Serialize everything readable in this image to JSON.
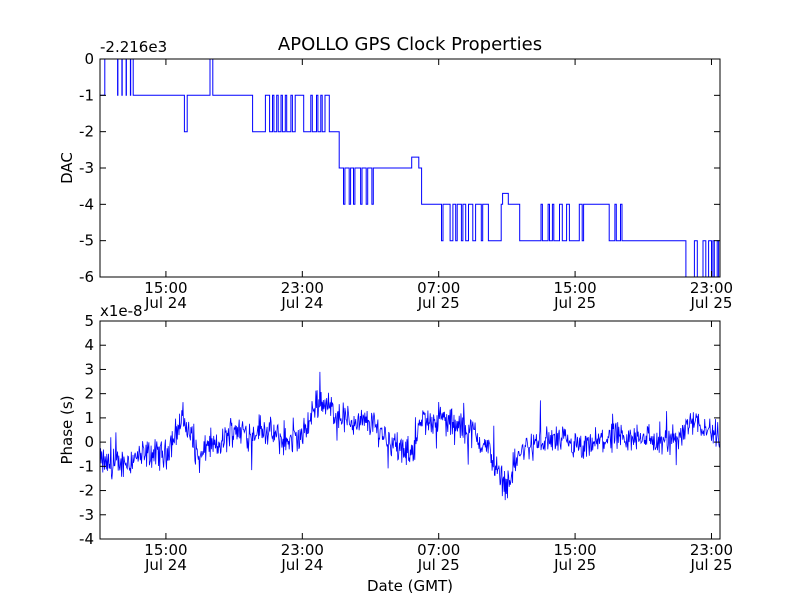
{
  "title": "APOLLO GPS Clock Properties",
  "chart_data": [
    {
      "type": "line",
      "title": "APOLLO GPS Clock Properties",
      "ylabel": "DAC",
      "xlabel": "",
      "offset_label": "-2.216e3",
      "ylim": [
        -6,
        0
      ],
      "yticks": [
        "0",
        "-1",
        "-2",
        "-3",
        "-4",
        "-5",
        "-6"
      ],
      "xlim": [
        "2012-07-24 11:08",
        "2012-07-25 23:30"
      ],
      "xticks": [
        {
          "time": "15:00",
          "date": "Jul 24"
        },
        {
          "time": "23:00",
          "date": "Jul 24"
        },
        {
          "time": "07:00",
          "date": "Jul 25"
        },
        {
          "time": "15:00",
          "date": "Jul 25"
        },
        {
          "time": "23:00",
          "date": "Jul 25"
        }
      ],
      "series_color": "#0000ff",
      "grid": false,
      "series": [
        {
          "x": [
            "11:08",
            "11:20",
            "11:25",
            "11:40",
            "12:10",
            "12:11",
            "12:25",
            "12:26",
            "12:40",
            "12:41",
            "12:55",
            "12:56",
            "13:05",
            "13:06",
            "13:20",
            "13:25",
            "13:40",
            "16:00",
            "16:05",
            "16:10",
            "16:15",
            "16:20",
            "17:25",
            "17:35",
            "17:45",
            "20:00",
            "20:05",
            "20:45",
            "20:50",
            "21:00",
            "21:05",
            "21:15",
            "21:20",
            "21:30",
            "21:35",
            "21:45",
            "21:50",
            "22:00",
            "22:05",
            "22:20",
            "22:25",
            "22:35",
            "22:40",
            "23:00",
            "23:05",
            "23:30",
            "23:35",
            "23:50",
            "23:55",
            "00:05",
            "00:10",
            "00:20",
            "00:25",
            "00:35",
            "00:40",
            "01:10",
            "01:15",
            "01:25",
            "01:30",
            "01:45",
            "01:50",
            "02:00",
            "02:05",
            "02:25",
            "02:30",
            "02:45",
            "02:50",
            "03:05",
            "03:10",
            "03:25",
            "03:30",
            "04:00",
            "04:05",
            "05:20",
            "05:25",
            "05:50",
            "05:55",
            "06:00",
            "06:30",
            "07:00",
            "07:10",
            "07:15",
            "07:40",
            "07:50",
            "08:00",
            "08:05",
            "08:20",
            "08:25",
            "08:35",
            "08:45",
            "09:00",
            "09:10",
            "09:30",
            "09:35",
            "09:50",
            "09:55",
            "10:40",
            "10:45",
            "11:05",
            "11:15",
            "11:40",
            "11:45",
            "13:00",
            "13:05",
            "13:25",
            "13:30",
            "13:40",
            "13:45",
            "14:05",
            "14:15",
            "14:30",
            "14:40",
            "15:10",
            "15:15",
            "15:25",
            "15:30",
            "17:00",
            "17:05",
            "17:20",
            "17:25",
            "17:40",
            "17:45",
            "18:00",
            "18:05",
            "18:10",
            "18:15",
            "21:30",
            "21:40",
            "22:00",
            "22:10",
            "22:30",
            "22:40",
            "22:50",
            "23:00",
            "23:05",
            "23:10",
            "23:20",
            "23:25",
            "23:30"
          ],
          "values": [
            -1,
            -1,
            0,
            0,
            -1,
            0,
            -1,
            0,
            -1,
            0,
            -1,
            0,
            -1,
            -1,
            -1,
            -1,
            -1,
            -1,
            -2,
            -2,
            -1,
            -1,
            -1,
            0,
            -1,
            -1,
            -2,
            -2,
            -1,
            -1,
            -2,
            -1,
            -2,
            -1,
            -2,
            -1,
            -2,
            -1,
            -2,
            -1,
            -2,
            -1,
            -1,
            -1,
            -2,
            -1,
            -2,
            -1,
            -2,
            -1,
            -2,
            -1,
            -1,
            -2,
            -2,
            -3,
            -3,
            -4,
            -3,
            -4,
            -3,
            -4,
            -3,
            -4,
            -3,
            -4,
            -3,
            -4,
            -3,
            -3,
            -3,
            -3,
            -3,
            -3,
            -2.7,
            -3,
            -3,
            -4,
            -4,
            -4,
            -5,
            -4,
            -5,
            -4,
            -5,
            -4,
            -5,
            -4,
            -5,
            -4,
            -5,
            -4,
            -5,
            -4,
            -4,
            -5,
            -4,
            -3.7,
            -4,
            -4,
            -4,
            -5,
            -4,
            -5,
            -4,
            -5,
            -4,
            -5,
            -4,
            -5,
            -4,
            -5,
            -5,
            -4,
            -5,
            -4,
            -5,
            -5,
            -4,
            -5,
            -4,
            -5,
            -5,
            -5,
            -5,
            -5,
            -6,
            -6,
            -5,
            -6,
            -5,
            -6,
            -5,
            -6,
            -5,
            -6,
            -5,
            -6,
            -5
          ]
        }
      ]
    },
    {
      "type": "line",
      "title": "",
      "ylabel": "Phase (s)",
      "xlabel": "Date (GMT)",
      "offset_label": "x1e-8",
      "ylim": [
        -4,
        5
      ],
      "yticks": [
        "5",
        "4",
        "3",
        "2",
        "1",
        "0",
        "-1",
        "-2",
        "-3",
        "-4"
      ],
      "xlim": [
        "2012-07-24 11:08",
        "2012-07-25 23:30"
      ],
      "xticks": [
        {
          "time": "15:00",
          "date": "Jul 24"
        },
        {
          "time": "23:00",
          "date": "Jul 24"
        },
        {
          "time": "07:00",
          "date": "Jul 25"
        },
        {
          "time": "15:00",
          "date": "Jul 25"
        },
        {
          "time": "23:00",
          "date": "Jul 25"
        }
      ],
      "series_color": "#0000ff",
      "grid": false,
      "series": [
        {
          "x": [
            "11:08",
            "12:00",
            "13:00",
            "14:00",
            "15:00",
            "15:30",
            "16:00",
            "16:30",
            "17:00",
            "17:30",
            "18:00",
            "19:00",
            "20:00",
            "20:30",
            "21:00",
            "22:00",
            "23:00",
            "00:00",
            "00:30",
            "01:00",
            "01:30",
            "02:00",
            "03:00",
            "04:00",
            "05:00",
            "05:30",
            "06:00",
            "07:00",
            "08:00",
            "09:00",
            "10:00",
            "10:30",
            "11:00",
            "11:30",
            "12:00",
            "13:00",
            "14:00",
            "15:00",
            "15:30",
            "16:00",
            "17:00",
            "18:00",
            "19:00",
            "20:00",
            "21:00",
            "22:00",
            "23:00",
            "23:30"
          ],
          "values": [
            -0.8,
            -1.0,
            -0.7,
            -0.5,
            -0.5,
            0.3,
            1.0,
            0.1,
            -0.8,
            0.0,
            -0.3,
            0.6,
            0.3,
            0.6,
            0.4,
            0.0,
            0.2,
            1.8,
            1.5,
            1.2,
            1.0,
            0.8,
            0.8,
            0.2,
            -0.5,
            -0.3,
            0.8,
            1.0,
            0.7,
            0.4,
            -0.4,
            -1.3,
            -1.8,
            -0.8,
            -0.3,
            0.0,
            0.1,
            -0.2,
            -0.4,
            -0.1,
            0.2,
            0.0,
            0.3,
            -0.1,
            0.2,
            1.0,
            0.4,
            0.2
          ]
        }
      ]
    }
  ]
}
